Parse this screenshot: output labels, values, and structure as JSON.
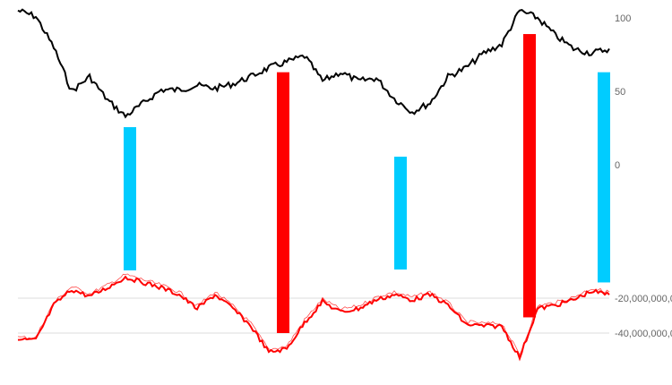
{
  "chart_data": {
    "type": "line",
    "title": "",
    "grid": true,
    "legend": "none",
    "axes": {
      "price": {
        "ticks": [
          {
            "value": 100,
            "label": "100"
          },
          {
            "value": 50,
            "label": "50"
          },
          {
            "value": 0,
            "label": "0"
          }
        ]
      },
      "flow": {
        "ticks": [
          {
            "value": -20000000000,
            "label": "-20,000,000,0"
          },
          {
            "value": -40000000000,
            "label": "-40,000,000,0"
          }
        ]
      }
    },
    "series": [
      {
        "axis": "price",
        "color": "#000000",
        "values": [
          105,
          101,
          80,
          50,
          60,
          44,
          33,
          42,
          51,
          51,
          54,
          52,
          55,
          60,
          66,
          70,
          74,
          57,
          63,
          57,
          59,
          45,
          36,
          42,
          60,
          66,
          76,
          82,
          105,
          100,
          88,
          79,
          76,
          79
        ]
      },
      {
        "axis": "flow",
        "color": "#ff0000",
        "unit": "billions",
        "values": [
          -44,
          -44,
          -24,
          -15,
          -19,
          -14,
          -8,
          -11,
          -14,
          -18,
          -26,
          -18,
          -26,
          -36,
          -51,
          -49,
          -34,
          -22,
          -28,
          -26,
          -21,
          -18,
          -21,
          -18,
          -24,
          -35,
          -36,
          -36,
          -54,
          -26,
          -24,
          -21,
          -16,
          -18
        ]
      }
    ],
    "markers": [
      {
        "at_sample": 6.25,
        "color": "#00ccff",
        "price_top": 25.6,
        "flow_bottom": -4.1
      },
      {
        "at_sample": 14.8,
        "color": "#ff0000",
        "price_top": 63,
        "flow_bottom": -40
      },
      {
        "at_sample": 21.35,
        "color": "#00ccff",
        "price_top": 5.5,
        "flow_bottom": -3.6
      },
      {
        "at_sample": 28.55,
        "color": "#ff0000",
        "price_top": 89,
        "flow_bottom": -31
      },
      {
        "at_sample": 32.7,
        "color": "#00ccff",
        "price_top": 63,
        "flow_bottom": -11
      }
    ]
  }
}
